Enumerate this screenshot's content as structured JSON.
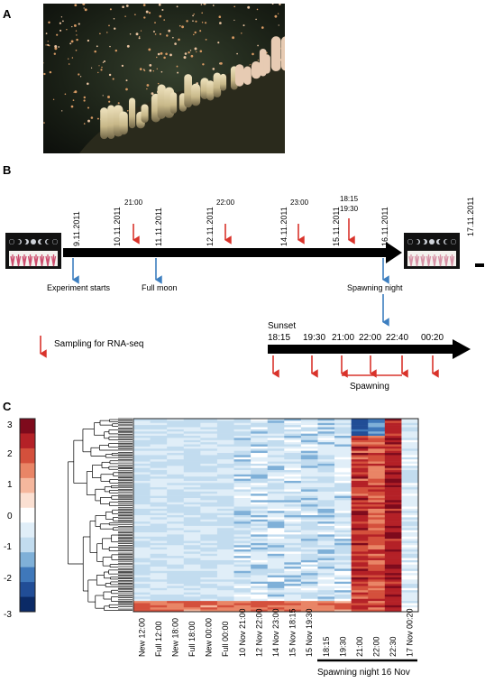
{
  "panels": {
    "a": "A",
    "b": "B",
    "c": "C"
  },
  "timeline": {
    "dates": [
      "9.11.2011",
      "10.11.2011",
      "11.11.2011",
      "12.11.2011",
      "14.11.2011",
      "15.11.2011",
      "16.11.2011",
      "17.11.2011"
    ],
    "sample_times": [
      "21:00",
      "22:00",
      "23:00",
      "18:15",
      "19:30"
    ],
    "events": {
      "start": "Experiment starts",
      "moon": "Full moon",
      "spawn_night": "Spawning night"
    },
    "legend": "Sampling for RNA-seq",
    "night": {
      "sunset": "Sunset",
      "times": [
        "18:15",
        "19:30",
        "21:00",
        "22:00",
        "22:40",
        "00:20"
      ],
      "spawning": "Spawning"
    }
  },
  "heatmap": {
    "scale_labels": [
      "3",
      "2",
      "1",
      "0",
      "-1",
      "-2",
      "-3"
    ],
    "columns": [
      "New 12:00",
      "Full 12:00",
      "New 18:00",
      "Full 18:00",
      "New 00:00",
      "Full 00:00",
      "10 Nov 21:00",
      "12 Nov 22:00",
      "14 Nov 23:00",
      "15 Nov 18:15",
      "15 Nov 19:30",
      "18:15",
      "19:30",
      "21:00",
      "22:00",
      "22:30",
      "17 Nov 00:20"
    ],
    "spawn_label": "Spawning night 16 Nov",
    "colors": [
      "#0b2a66",
      "#214d96",
      "#3f78ba",
      "#7fb0d8",
      "#c2dcef",
      "#e0eef8",
      "#ffffff",
      "#fbe0d2",
      "#f5b79d",
      "#e98566",
      "#d4503c",
      "#b42127",
      "#7e0a1c"
    ]
  }
}
